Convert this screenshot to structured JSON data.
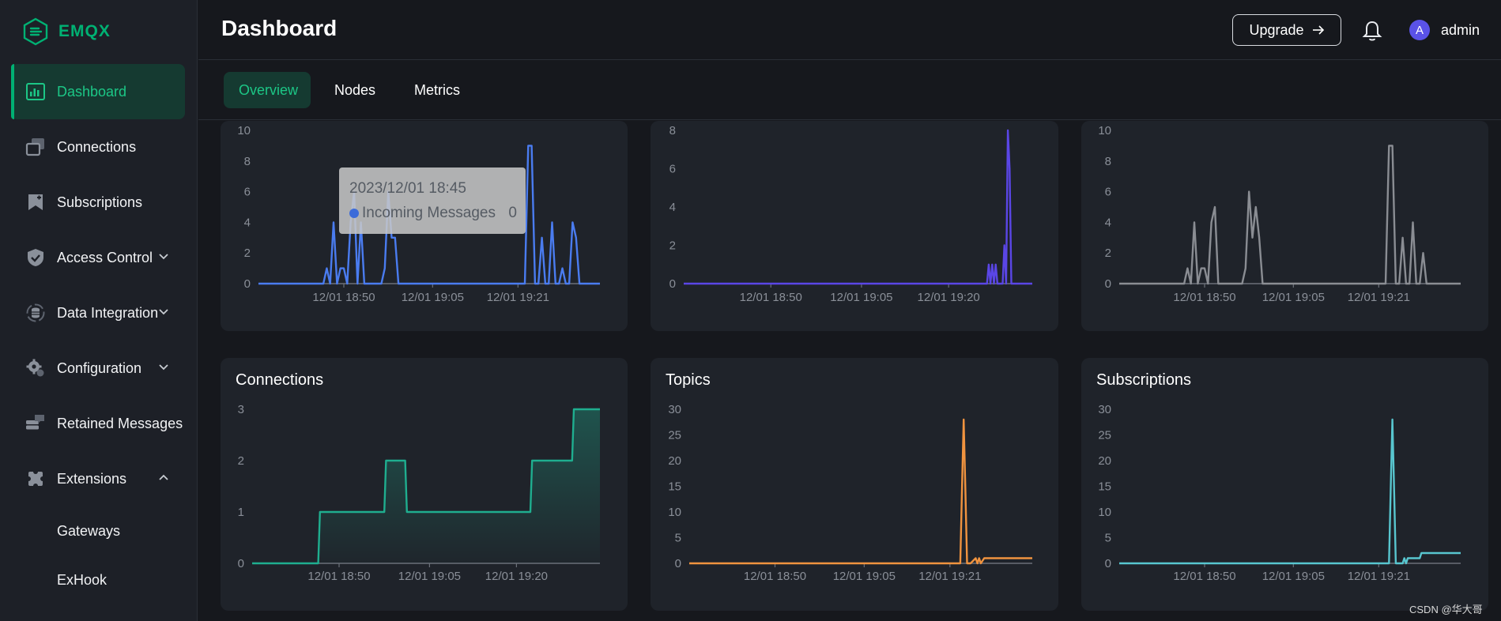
{
  "app": {
    "name": "EMQX"
  },
  "sidebar": {
    "items": [
      {
        "label": "Dashboard",
        "icon": "bar-chart-icon",
        "active": true
      },
      {
        "label": "Connections",
        "icon": "connections-icon"
      },
      {
        "label": "Subscriptions",
        "icon": "bookmark-icon"
      },
      {
        "label": "Access Control",
        "icon": "shield-icon",
        "expandable": "down"
      },
      {
        "label": "Data Integration",
        "icon": "database-icon",
        "expandable": "down"
      },
      {
        "label": "Configuration",
        "icon": "gear-icon",
        "expandable": "down"
      },
      {
        "label": "Retained Messages",
        "icon": "chat-icon"
      },
      {
        "label": "Extensions",
        "icon": "puzzle-icon",
        "expandable": "up"
      }
    ],
    "subitems": [
      {
        "label": "Gateways"
      },
      {
        "label": "ExHook"
      }
    ]
  },
  "header": {
    "title": "Dashboard",
    "upgrade_label": "Upgrade",
    "user": {
      "initial": "A",
      "name": "admin"
    }
  },
  "tabs": [
    {
      "label": "Overview",
      "active": true
    },
    {
      "label": "Nodes"
    },
    {
      "label": "Metrics"
    }
  ],
  "tooltip": {
    "time": "2023/12/01 18:45",
    "series": "Incoming Messages",
    "value": "0"
  },
  "watermark": "CSDN @华大哥",
  "colors": {
    "accent": "#00b173",
    "blue": "#4a7cf0",
    "purple": "#5a46e6",
    "gray": "#8a8d93",
    "teal": "#1fae8f",
    "orange": "#f0933f",
    "cyan": "#58c6cf"
  },
  "chart_data": [
    {
      "type": "line",
      "series_name": "Incoming Messages",
      "color": "#4a7cf0",
      "yticks": [
        "0",
        "2",
        "4",
        "6",
        "8",
        "10"
      ],
      "ylim": [
        0,
        10
      ],
      "xticks": [
        "12/01 18:50",
        "12/01 19:05",
        "12/01 19:21"
      ],
      "x": [
        0,
        0.19,
        0.2,
        0.21,
        0.22,
        0.23,
        0.24,
        0.25,
        0.26,
        0.27,
        0.28,
        0.29,
        0.3,
        0.31,
        0.36,
        0.37,
        0.38,
        0.39,
        0.4,
        0.41,
        0.42,
        0.78,
        0.79,
        0.8,
        0.81,
        0.82,
        0.83,
        0.84,
        0.85,
        0.86,
        0.87,
        0.88,
        0.89,
        0.9,
        0.91,
        0.92,
        0.93,
        0.94,
        1
      ],
      "values": [
        0,
        0,
        1,
        0,
        4,
        0,
        1,
        1,
        0,
        4,
        6,
        0,
        4,
        0,
        0,
        1,
        6,
        3,
        3,
        0,
        0,
        0,
        9,
        9,
        0,
        0,
        3,
        0,
        0,
        4,
        0,
        0,
        1,
        0,
        0,
        4,
        3,
        0,
        0
      ]
    },
    {
      "type": "line",
      "color": "#5a46e6",
      "yticks": [
        "0",
        "2",
        "4",
        "6",
        "8"
      ],
      "ylim": [
        0,
        8
      ],
      "xticks": [
        "12/01 18:50",
        "12/01 19:05",
        "12/01 19:20"
      ],
      "x": [
        0,
        0.87,
        0.875,
        0.88,
        0.885,
        0.89,
        0.895,
        0.9,
        0.915,
        0.92,
        0.925,
        0.93,
        0.935,
        0.94,
        0.945,
        1
      ],
      "values": [
        0,
        0,
        1,
        0,
        1,
        0,
        1,
        0,
        0,
        2,
        0,
        8,
        6,
        0,
        0,
        0
      ]
    },
    {
      "type": "line",
      "color": "#8a8d93",
      "yticks": [
        "0",
        "2",
        "4",
        "6",
        "8",
        "10"
      ],
      "ylim": [
        0,
        10
      ],
      "xticks": [
        "12/01 18:50",
        "12/01 19:05",
        "12/01 19:21"
      ],
      "x": [
        0,
        0.19,
        0.2,
        0.21,
        0.22,
        0.23,
        0.24,
        0.25,
        0.26,
        0.27,
        0.28,
        0.29,
        0.3,
        0.31,
        0.36,
        0.37,
        0.38,
        0.39,
        0.4,
        0.41,
        0.42,
        0.78,
        0.79,
        0.8,
        0.81,
        0.82,
        0.83,
        0.84,
        0.85,
        0.86,
        0.87,
        0.88,
        0.89,
        0.9,
        0.91,
        0.92,
        0.93,
        0.94,
        1
      ],
      "values": [
        0,
        0,
        1,
        0,
        4,
        0,
        1,
        1,
        0,
        4,
        5,
        0,
        0,
        0,
        0,
        1,
        6,
        3,
        5,
        3,
        0,
        0,
        9,
        9,
        0,
        0,
        3,
        0,
        0,
        4,
        0,
        0,
        2,
        0,
        0,
        0,
        0,
        0,
        0
      ]
    },
    {
      "type": "area",
      "title": "Connections",
      "color": "#1fae8f",
      "yticks": [
        "0",
        "1",
        "2",
        "3"
      ],
      "ylim": [
        0,
        3
      ],
      "xticks": [
        "12/01 18:50",
        "12/01 19:05",
        "12/01 19:20"
      ],
      "x": [
        0,
        0.19,
        0.195,
        0.38,
        0.385,
        0.44,
        0.445,
        0.8,
        0.805,
        0.92,
        0.925,
        1
      ],
      "values": [
        0,
        0,
        1,
        1,
        2,
        2,
        1,
        1,
        2,
        2,
        3,
        3
      ]
    },
    {
      "type": "line",
      "title": "Topics",
      "color": "#f0933f",
      "yticks": [
        "0",
        "5",
        "10",
        "15",
        "20",
        "25",
        "30"
      ],
      "ylim": [
        0,
        30
      ],
      "xticks": [
        "12/01 18:50",
        "12/01 19:05",
        "12/01 19:21"
      ],
      "x": [
        0,
        0.79,
        0.795,
        0.8,
        0.805,
        0.81,
        0.82,
        0.835,
        0.84,
        0.845,
        0.85,
        0.86,
        1
      ],
      "values": [
        0,
        0,
        14,
        28,
        14,
        0,
        0,
        1,
        0,
        1,
        0,
        1,
        1
      ]
    },
    {
      "type": "line",
      "title": "Subscriptions",
      "color": "#58c6cf",
      "yticks": [
        "0",
        "5",
        "10",
        "15",
        "20",
        "25",
        "30"
      ],
      "ylim": [
        0,
        30
      ],
      "xticks": [
        "12/01 18:50",
        "12/01 19:05",
        "12/01 19:21"
      ],
      "x": [
        0,
        0.79,
        0.795,
        0.8,
        0.805,
        0.81,
        0.83,
        0.835,
        0.84,
        0.845,
        0.88,
        0.885,
        0.92,
        0.925,
        1
      ],
      "values": [
        0,
        0,
        14,
        28,
        14,
        0,
        0,
        1,
        0,
        1,
        1,
        2,
        2,
        2,
        2
      ]
    }
  ]
}
